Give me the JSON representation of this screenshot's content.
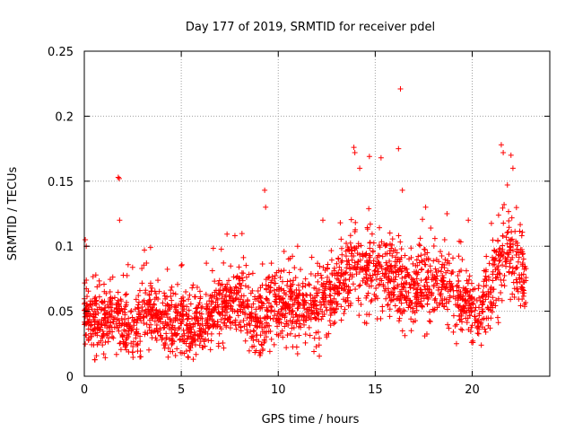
{
  "chart_data": {
    "type": "scatter",
    "title": "Day 177 of 2019, SRMTID for receiver pdel",
    "xlabel": "GPS time / hours",
    "ylabel": "SRMTID / TECUs",
    "xlim": [
      0,
      24
    ],
    "ylim": [
      0,
      0.25
    ],
    "xticks": [
      "0",
      "5",
      "10",
      "15",
      "20"
    ],
    "yticks": [
      "0",
      "0.05",
      "0.1",
      "0.15",
      "0.2",
      "0.25"
    ],
    "grid": true,
    "marker": "plus",
    "marker_color": "#ff0000",
    "series": [
      {
        "name": "SRMTID",
        "baseline": [
          [
            0.0,
            0.05
          ],
          [
            0.5,
            0.04
          ],
          [
            1.0,
            0.038
          ],
          [
            1.5,
            0.045
          ],
          [
            2.0,
            0.04
          ],
          [
            2.5,
            0.035
          ],
          [
            3.0,
            0.048
          ],
          [
            3.5,
            0.05
          ],
          [
            4.0,
            0.045
          ],
          [
            4.5,
            0.04
          ],
          [
            5.0,
            0.038
          ],
          [
            5.5,
            0.036
          ],
          [
            6.0,
            0.04
          ],
          [
            6.5,
            0.045
          ],
          [
            7.0,
            0.05
          ],
          [
            7.5,
            0.055
          ],
          [
            8.0,
            0.058
          ],
          [
            8.5,
            0.045
          ],
          [
            9.0,
            0.04
          ],
          [
            9.5,
            0.05
          ],
          [
            10.0,
            0.055
          ],
          [
            10.5,
            0.055
          ],
          [
            11.0,
            0.055
          ],
          [
            11.5,
            0.052
          ],
          [
            12.0,
            0.05
          ],
          [
            12.5,
            0.06
          ],
          [
            13.0,
            0.065
          ],
          [
            13.5,
            0.075
          ],
          [
            14.0,
            0.08
          ],
          [
            14.5,
            0.085
          ],
          [
            15.0,
            0.082
          ],
          [
            15.5,
            0.078
          ],
          [
            16.0,
            0.072
          ],
          [
            16.5,
            0.068
          ],
          [
            17.0,
            0.065
          ],
          [
            17.5,
            0.07
          ],
          [
            18.0,
            0.072
          ],
          [
            18.5,
            0.068
          ],
          [
            19.0,
            0.062
          ],
          [
            19.5,
            0.055
          ],
          [
            20.0,
            0.048
          ],
          [
            20.5,
            0.052
          ],
          [
            21.0,
            0.065
          ],
          [
            21.5,
            0.09
          ],
          [
            22.0,
            0.095
          ],
          [
            22.5,
            0.08
          ],
          [
            22.8,
            0.07
          ]
        ],
        "spread": 0.012,
        "point_count": 2400,
        "outliers": [
          [
            1.75,
            0.153
          ],
          [
            1.8,
            0.152
          ],
          [
            1.82,
            0.12
          ],
          [
            9.3,
            0.143
          ],
          [
            9.35,
            0.13
          ],
          [
            13.2,
            0.118
          ],
          [
            13.9,
            0.176
          ],
          [
            13.95,
            0.172
          ],
          [
            14.2,
            0.16
          ],
          [
            14.7,
            0.169
          ],
          [
            15.3,
            0.168
          ],
          [
            16.2,
            0.175
          ],
          [
            16.3,
            0.221
          ],
          [
            16.4,
            0.143
          ],
          [
            21.5,
            0.178
          ],
          [
            21.6,
            0.172
          ],
          [
            22.0,
            0.17
          ],
          [
            22.1,
            0.16
          ],
          [
            0.05,
            0.105
          ],
          [
            0.1,
            0.1
          ],
          [
            17.6,
            0.13
          ],
          [
            18.7,
            0.125
          ],
          [
            19.8,
            0.12
          ],
          [
            12.3,
            0.12
          ],
          [
            10.3,
            0.096
          ],
          [
            11.0,
            0.1
          ],
          [
            3.1,
            0.097
          ],
          [
            5.0,
            0.085
          ]
        ]
      }
    ]
  }
}
